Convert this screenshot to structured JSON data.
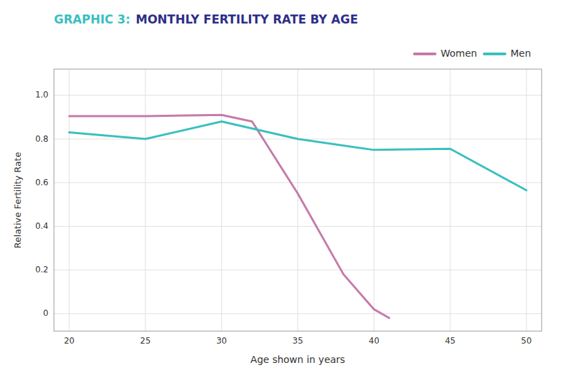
{
  "chart_data": {
    "type": "line",
    "title": "GRAPHIC 3:",
    "subtitle": "MONTHLY FERTILITY RATE BY AGE",
    "xlabel": "Age shown in years",
    "ylabel": "Relative Fertility Rate",
    "series": [
      {
        "name": "Women",
        "color": "#C47BAA",
        "x": [
          20,
          25,
          30,
          32,
          35,
          38,
          40,
          41
        ],
        "values": [
          0.905,
          0.905,
          0.91,
          0.88,
          0.55,
          0.18,
          0.02,
          -0.02
        ]
      },
      {
        "name": "Men",
        "color": "#3BBFBF",
        "x": [
          20,
          25,
          30,
          35,
          40,
          45,
          50
        ],
        "values": [
          0.83,
          0.8,
          0.88,
          0.8,
          0.75,
          0.755,
          0.565
        ]
      }
    ],
    "xlim": [
      19,
      51
    ],
    "ylim": [
      -0.08,
      1.12
    ],
    "xticks": [
      20,
      25,
      30,
      35,
      40,
      45,
      50
    ],
    "yticks": [
      0,
      0.2,
      0.4,
      0.6,
      0.8,
      {
        "value": 1.0,
        "label": "1.0"
      }
    ],
    "grid": true,
    "legend": "top-right"
  }
}
